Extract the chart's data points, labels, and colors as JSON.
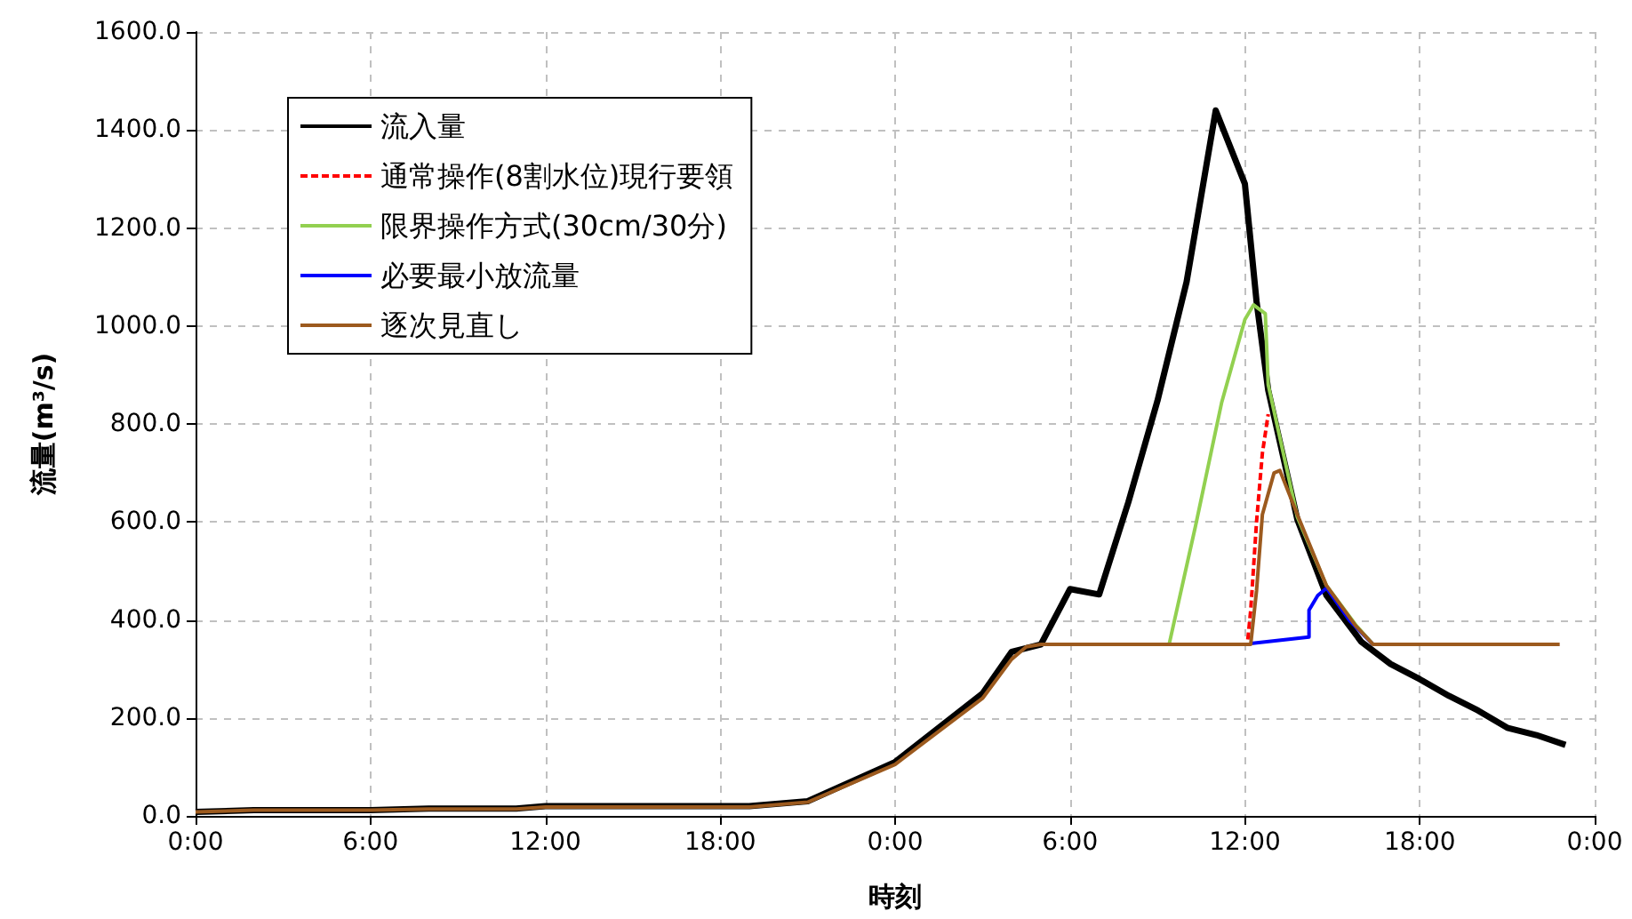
{
  "chart_data": {
    "type": "line",
    "xlabel": "時刻",
    "ylabel": "流量(m³/s)",
    "xlim": [
      "--01-01T00:00",
      "--01-03T00:00"
    ],
    "xticks": [
      {
        "value": "--01-01T00:00",
        "label": "0:00"
      },
      {
        "value": "--01-01T06:00",
        "label": "6:00"
      },
      {
        "value": "--01-01T12:00",
        "label": "12:00"
      },
      {
        "value": "--01-01T18:00",
        "label": "18:00"
      },
      {
        "value": "--01-02T00:00",
        "label": "0:00"
      },
      {
        "value": "--01-02T06:00",
        "label": "6:00"
      },
      {
        "value": "--01-02T12:00",
        "label": "12:00"
      },
      {
        "value": "--01-02T18:00",
        "label": "18:00"
      },
      {
        "value": "--01-03T00:00",
        "label": "0:00"
      }
    ],
    "ylim": [
      0,
      1600
    ],
    "yticks": [
      {
        "value": 0,
        "label": "0.0"
      },
      {
        "value": 200,
        "label": "200.0"
      },
      {
        "value": 400,
        "label": "400.0"
      },
      {
        "value": 600,
        "label": "600.0"
      },
      {
        "value": 800,
        "label": "800.0"
      },
      {
        "value": 1000,
        "label": "1000.0"
      },
      {
        "value": 1200,
        "label": "1200.0"
      },
      {
        "value": 1400,
        "label": "1400.0"
      },
      {
        "value": 1600,
        "label": "1600.0"
      }
    ],
    "grid": true,
    "legend": "top left",
    "marker": "none",
    "series": [
      {
        "name": "流入量",
        "color": "#000000",
        "line_style": "solid",
        "x": [
          "--01-01T00:00",
          "--01-01T02:00",
          "--01-01T06:00",
          "--01-01T08:00",
          "--01-01T11:00",
          "--01-01T12:00",
          "--01-01T19:00",
          "--01-01T21:00",
          "--01-02T00:00",
          "--01-02T03:00",
          "--01-02T04:00",
          "--01-02T05:00",
          "--01-02T06:00",
          "--01-02T07:00",
          "--01-02T08:00",
          "--01-02T09:00",
          "--01-02T10:00",
          "--01-02T11:00",
          "--01-02T12:00",
          "--01-02T12:24",
          "--01-02T12:48",
          "--01-02T13:48",
          "--01-02T14:48",
          "--01-02T16:00",
          "--01-02T17:00",
          "--01-02T18:00",
          "--01-02T19:00",
          "--01-02T20:00",
          "--01-02T21:00",
          "--01-02T22:00",
          "--01-02T23:00"
        ],
        "values": [
          8,
          12,
          12,
          15,
          15,
          20,
          20,
          30,
          110,
          250,
          335,
          350,
          463,
          452,
          640,
          847,
          1090,
          1440,
          1290,
          1050,
          869,
          605,
          450,
          355,
          310,
          279,
          245,
          215,
          180,
          165,
          145
        ]
      },
      {
        "name": "通常操作(8割水位)現行要領",
        "color": "#ff0000",
        "line_style": "dashed",
        "x": [
          "--01-02T12:06",
          "--01-02T12:12",
          "--01-02T12:24",
          "--01-02T12:36",
          "--01-02T12:48"
        ],
        "values": [
          360,
          420,
          600,
          740,
          820
        ]
      },
      {
        "name": "限界操作方式(30cm/30分)",
        "color": "#92d050",
        "line_style": "solid",
        "x": [
          "--01-02T09:24",
          "--01-02T10:18",
          "--01-02T11:12",
          "--01-02T12:00",
          "--01-02T12:18",
          "--01-02T12:42",
          "--01-02T12:48",
          "--01-02T13:48",
          "--01-02T14:48",
          "--01-02T15:48",
          "--01-02T16:24"
        ],
        "values": [
          350,
          590,
          843,
          1013,
          1043,
          1025,
          880,
          610,
          470,
          390,
          350
        ]
      },
      {
        "name": "必要最小放流量",
        "color": "#0000ff",
        "line_style": "solid",
        "x": [
          "--01-02T12:12",
          "--01-02T14:12",
          "--01-02T14:12",
          "--01-02T14:30",
          "--01-02T14:48",
          "--01-02T15:36",
          "--01-02T16:24"
        ],
        "values": [
          352,
          365,
          420,
          450,
          465,
          398,
          350
        ]
      },
      {
        "name": "逐次見直し",
        "color": "#9c5a1e",
        "line_style": "solid",
        "x": [
          "--01-01T00:00",
          "--01-01T02:00",
          "--01-01T06:00",
          "--01-01T08:00",
          "--01-01T11:00",
          "--01-01T12:00",
          "--01-01T19:00",
          "--01-01T21:00",
          "--01-02T00:00",
          "--01-02T03:00",
          "--01-02T04:00",
          "--01-02T04:30",
          "--01-02T05:00",
          "--01-02T12:12",
          "--01-02T12:24",
          "--01-02T12:36",
          "--01-02T13:00",
          "--01-02T13:12",
          "--01-02T13:48",
          "--01-02T14:48",
          "--01-02T15:48",
          "--01-02T16:24",
          "--01-02T22:48"
        ],
        "values": [
          8,
          12,
          12,
          14,
          14,
          18,
          18,
          28,
          105,
          240,
          320,
          345,
          350,
          350,
          460,
          615,
          700,
          705,
          615,
          470,
          388,
          350,
          350
        ]
      }
    ]
  }
}
